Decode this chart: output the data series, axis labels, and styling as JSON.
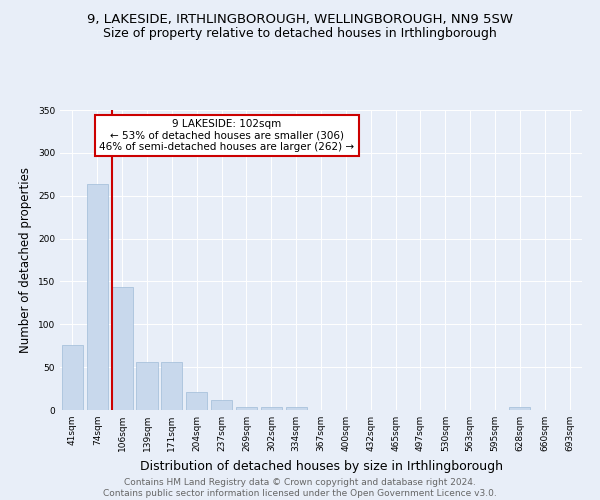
{
  "title": "9, LAKESIDE, IRTHLINGBOROUGH, WELLINGBOROUGH, NN9 5SW",
  "subtitle": "Size of property relative to detached houses in Irthlingborough",
  "xlabel": "Distribution of detached houses by size in Irthlingborough",
  "ylabel": "Number of detached properties",
  "categories": [
    "41sqm",
    "74sqm",
    "106sqm",
    "139sqm",
    "171sqm",
    "204sqm",
    "237sqm",
    "269sqm",
    "302sqm",
    "334sqm",
    "367sqm",
    "400sqm",
    "432sqm",
    "465sqm",
    "497sqm",
    "530sqm",
    "563sqm",
    "595sqm",
    "628sqm",
    "660sqm",
    "693sqm"
  ],
  "values": [
    76,
    264,
    144,
    56,
    56,
    21,
    12,
    4,
    4,
    4,
    0,
    0,
    0,
    0,
    0,
    0,
    0,
    0,
    4,
    0,
    0
  ],
  "bar_color": "#c8d8ec",
  "bar_edgecolor": "#a0bcd8",
  "vline_color": "#cc0000",
  "vline_index": 1.6,
  "annotation_text": "9 LAKESIDE: 102sqm\n← 53% of detached houses are smaller (306)\n46% of semi-detached houses are larger (262) →",
  "annotation_box_edgecolor": "#cc0000",
  "annotation_box_facecolor": "#ffffff",
  "ylim": [
    0,
    350
  ],
  "yticks": [
    0,
    50,
    100,
    150,
    200,
    250,
    300,
    350
  ],
  "background_color": "#e8eef8",
  "plot_background_color": "#e8eef8",
  "footer_text": "Contains HM Land Registry data © Crown copyright and database right 2024.\nContains public sector information licensed under the Open Government Licence v3.0.",
  "title_fontsize": 9.5,
  "subtitle_fontsize": 9,
  "xlabel_fontsize": 9,
  "ylabel_fontsize": 8.5,
  "tick_fontsize": 6.5,
  "footer_fontsize": 6.5,
  "annotation_fontsize": 7.5
}
